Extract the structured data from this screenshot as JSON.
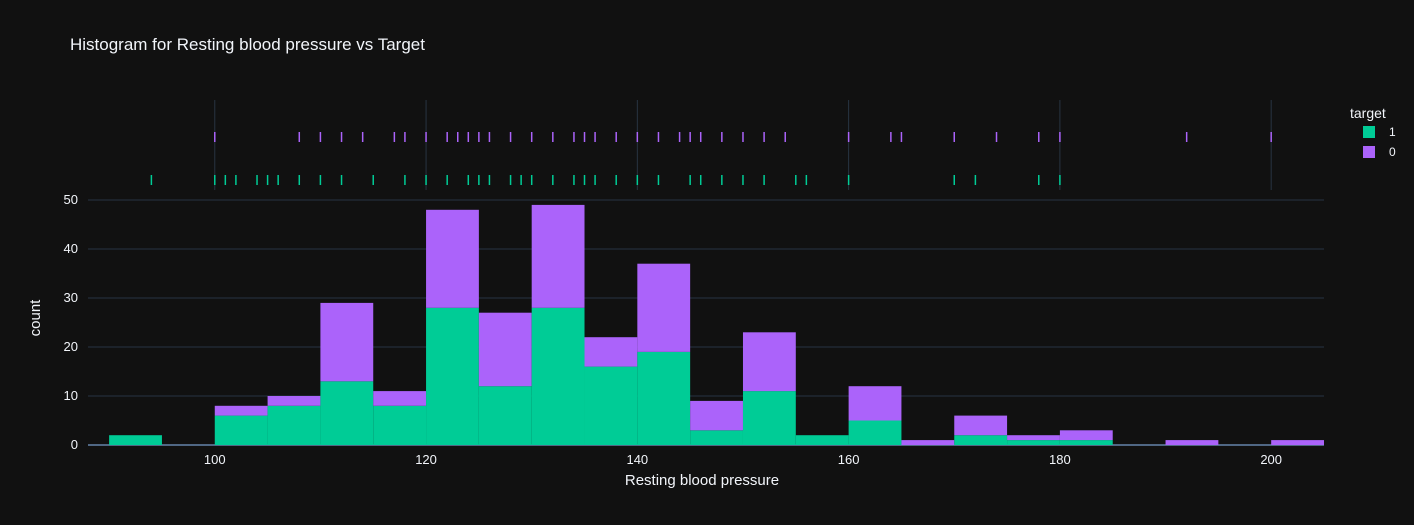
{
  "chart_data": {
    "type": "bar",
    "title": "Histogram for Resting blood pressure vs Target",
    "xlabel": "Resting blood pressure",
    "ylabel": "count",
    "stacked": true,
    "bin_width": 5,
    "xlim": [
      88,
      205
    ],
    "ylim": [
      0,
      50
    ],
    "x_ticks": [
      100,
      120,
      140,
      160,
      180,
      200
    ],
    "y_ticks": [
      0,
      10,
      20,
      30,
      40,
      50
    ],
    "grid": true,
    "legend": {
      "title": "target",
      "position": "top-right"
    },
    "bins": [
      90,
      95,
      100,
      105,
      110,
      115,
      120,
      125,
      130,
      135,
      140,
      145,
      150,
      155,
      160,
      165,
      170,
      175,
      180,
      185,
      190,
      195,
      200
    ],
    "series": [
      {
        "name": "1",
        "color": "#00cc96",
        "values": [
          2,
          0,
          6,
          8,
          13,
          8,
          28,
          12,
          28,
          16,
          19,
          3,
          11,
          2,
          5,
          0,
          2,
          1,
          1,
          0,
          0,
          0,
          0
        ]
      },
      {
        "name": "0",
        "color": "#ab63fa",
        "values": [
          0,
          0,
          2,
          2,
          16,
          3,
          20,
          15,
          21,
          6,
          18,
          6,
          12,
          0,
          7,
          1,
          4,
          1,
          2,
          0,
          1,
          0,
          1
        ]
      }
    ],
    "rug": {
      "1": [
        94,
        100,
        101,
        102,
        104,
        105,
        106,
        108,
        110,
        112,
        115,
        118,
        120,
        122,
        124,
        125,
        126,
        128,
        129,
        130,
        132,
        134,
        135,
        136,
        138,
        140,
        142,
        145,
        146,
        148,
        150,
        152,
        155,
        156,
        160,
        170,
        172,
        178,
        180
      ],
      "0": [
        100,
        108,
        110,
        112,
        114,
        117,
        118,
        120,
        122,
        123,
        124,
        125,
        126,
        128,
        130,
        132,
        134,
        135,
        136,
        138,
        140,
        142,
        144,
        145,
        146,
        148,
        150,
        152,
        154,
        160,
        164,
        165,
        170,
        174,
        178,
        180,
        192,
        200
      ]
    }
  }
}
